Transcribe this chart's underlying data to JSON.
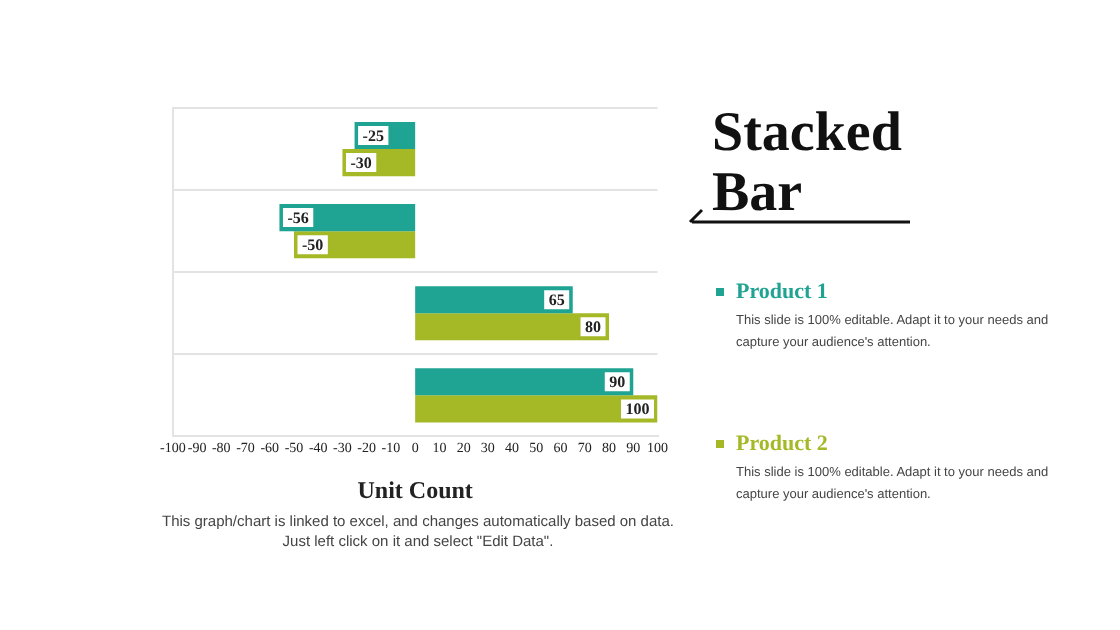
{
  "chart_data": {
    "type": "bar",
    "orientation": "horizontal",
    "title": "Stacked Bar",
    "xlabel": "Unit Count",
    "categories": [
      null,
      null,
      null,
      null
    ],
    "series": [
      {
        "name": "Product 1",
        "color": "#1fa392",
        "values": [
          -25,
          -56,
          65,
          90
        ]
      },
      {
        "name": "Product 2",
        "color": "#a5b826",
        "values": [
          -30,
          -50,
          80,
          100
        ]
      }
    ],
    "xlim": [
      -100,
      100
    ],
    "xticks": [
      -100,
      -90,
      -80,
      -70,
      -60,
      -50,
      -40,
      -30,
      -20,
      -10,
      0,
      10,
      20,
      30,
      40,
      50,
      60,
      70,
      80,
      90,
      100
    ],
    "data_labels": true,
    "grid": "y",
    "legend": "right",
    "annotations": [
      "This slide is 100% editable. Adapt it to your needs and capture your audience's attention.",
      "This slide is 100% editable. Adapt it to your needs and capture your audience's attention.",
      "This graph/chart is linked to excel, and changes automatically based on data. Just left click on it and select \"Edit Data\"."
    ]
  }
}
